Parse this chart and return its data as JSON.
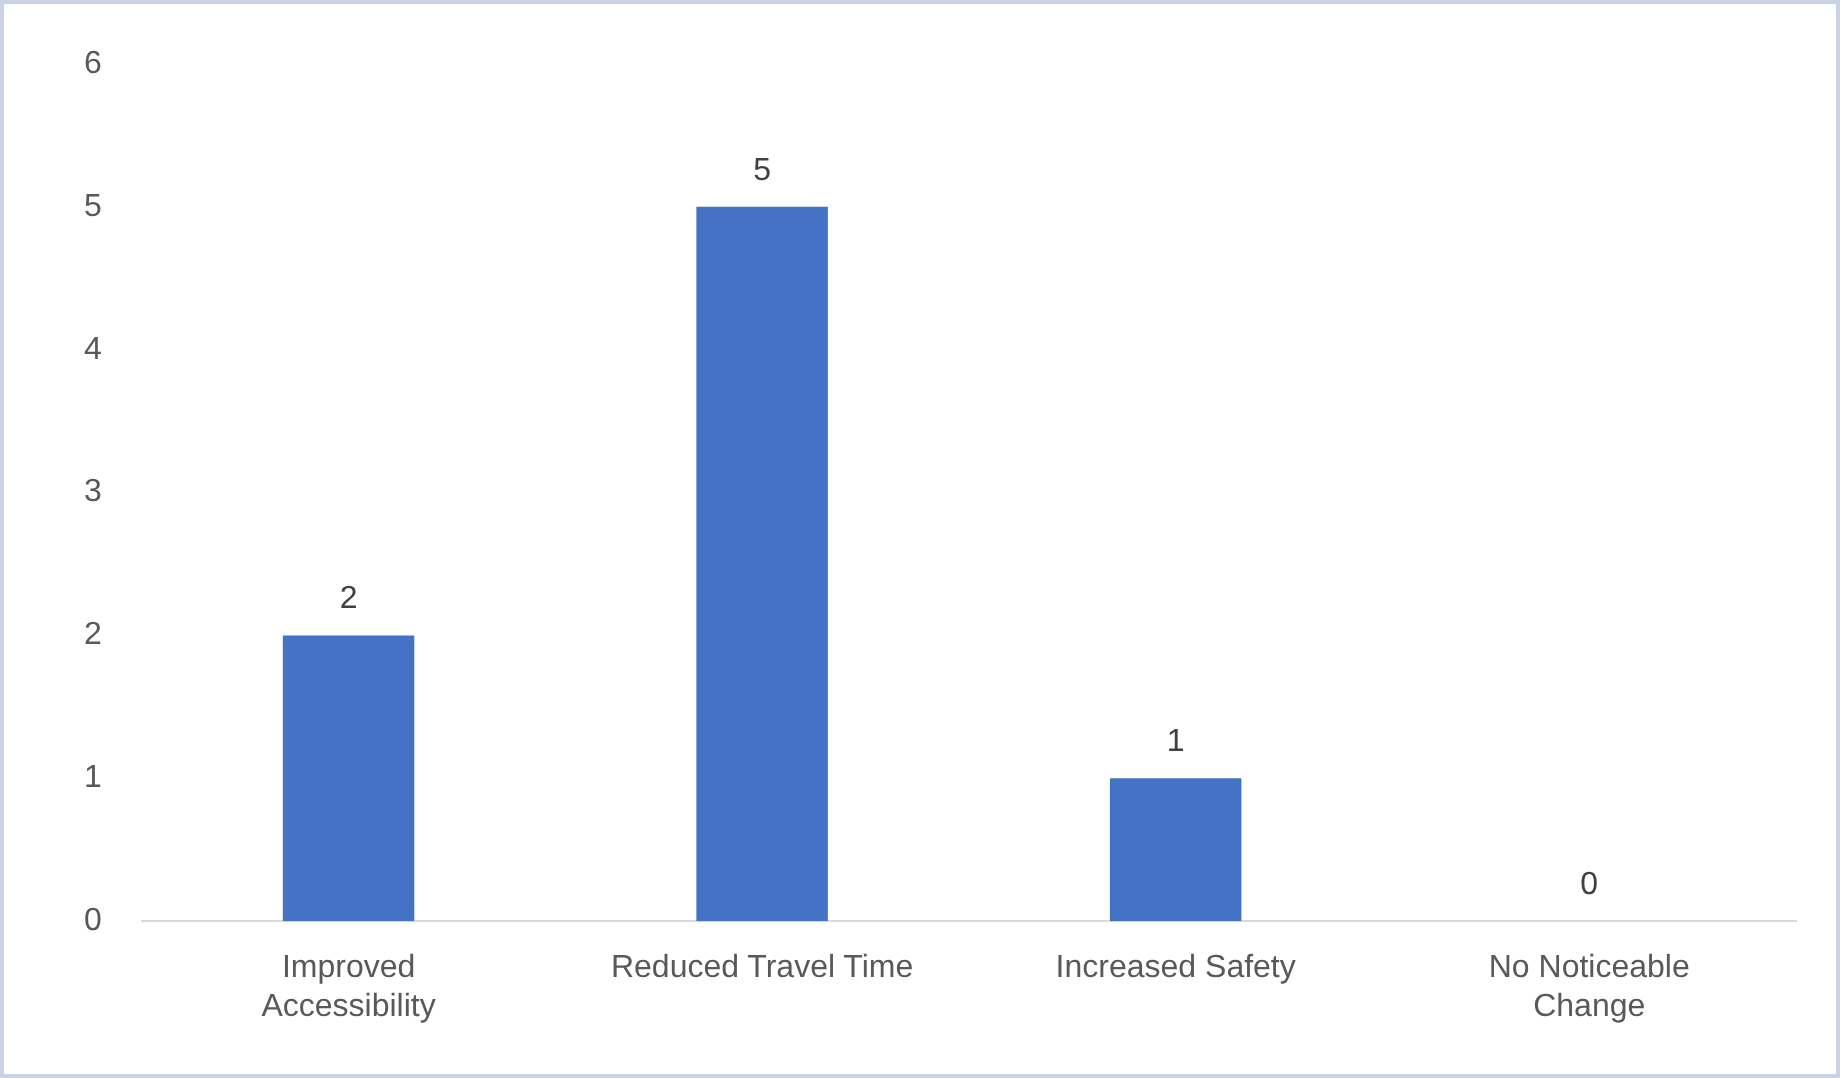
{
  "chart_data": {
    "type": "bar",
    "categories": [
      "Improved Accessibility",
      "Reduced Travel Time",
      "Increased Safety",
      "No Noticeable Change"
    ],
    "values": [
      2,
      5,
      1,
      0
    ],
    "color": "#4472c4",
    "ylim": [
      0,
      6
    ],
    "yticks": [
      0,
      1,
      2,
      3,
      4,
      5,
      6
    ],
    "grid": false,
    "data_labels": true
  }
}
